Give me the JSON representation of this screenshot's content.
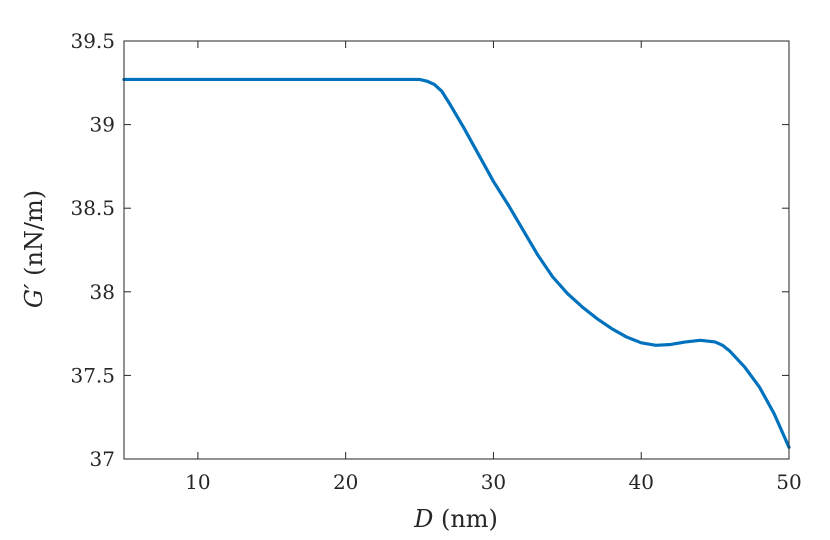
{
  "chart_data": {
    "type": "line",
    "title": "",
    "xlabel_var": "D",
    "xlabel_unit": " (nm)",
    "ylabel_var": "G′",
    "ylabel_unit": " (nN/m)",
    "xlim": [
      5,
      50
    ],
    "ylim": [
      37,
      39.5
    ],
    "xticks": [
      10,
      20,
      30,
      40,
      50
    ],
    "xtick_labels": [
      "10",
      "20",
      "30",
      "40",
      "50"
    ],
    "yticks": [
      37,
      37.5,
      38,
      38.5,
      39,
      39.5
    ],
    "ytick_labels": [
      "37",
      "37.5",
      "38",
      "38.5",
      "39",
      "39.5"
    ],
    "grid": false,
    "legend": "none",
    "series": [
      {
        "color": "#0072BD",
        "x": [
          5,
          10,
          15,
          20,
          24,
          25,
          25.5,
          26,
          26.5,
          27,
          28,
          29,
          30,
          31,
          32,
          33,
          34,
          35,
          36,
          37,
          38,
          39,
          40,
          41,
          42,
          43,
          44,
          45,
          45.5,
          46,
          47,
          48,
          49,
          50
        ],
        "y": [
          39.27,
          39.27,
          39.27,
          39.27,
          39.27,
          39.27,
          39.26,
          39.24,
          39.2,
          39.13,
          38.98,
          38.82,
          38.66,
          38.52,
          38.37,
          38.22,
          38.09,
          37.99,
          37.91,
          37.84,
          37.78,
          37.73,
          37.695,
          37.68,
          37.685,
          37.7,
          37.71,
          37.7,
          37.68,
          37.645,
          37.55,
          37.43,
          37.27,
          37.07
        ]
      }
    ]
  }
}
